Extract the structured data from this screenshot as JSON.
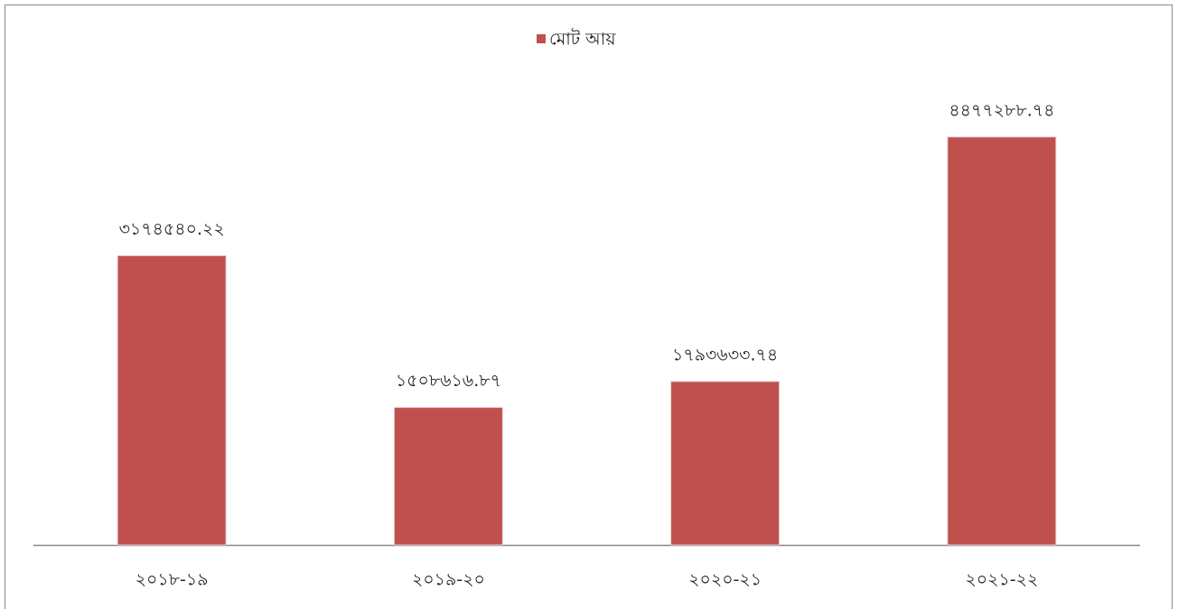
{
  "chart_data": {
    "type": "bar",
    "legend": "মোট আয়",
    "categories": [
      "২০১৮-১৯",
      "২০১৯-২০",
      "২০২০-২১",
      "২০২১-২২"
    ],
    "values": [
      3174540.22,
      1508616.87,
      1793633.74,
      4477288.74
    ],
    "value_labels": [
      "৩১৭৪৫৪০.২২",
      "১৫০৮৬১৬.৮৭",
      "১৭৯৩৬৩৩.৭৪",
      "৪৪৭৭২৮৮.৭৪"
    ],
    "color": "#c0504d",
    "ylim": [
      0,
      5000000
    ]
  }
}
